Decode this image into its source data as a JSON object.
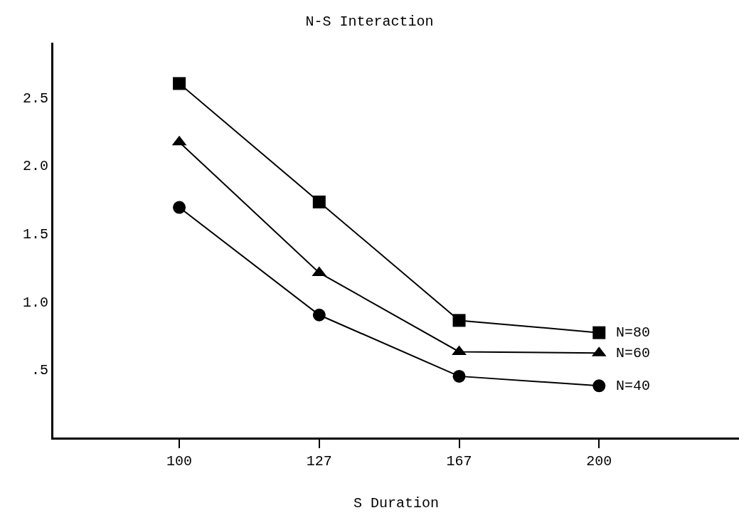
{
  "chart_data": {
    "type": "line",
    "title": "N-S Interaction",
    "xlabel": "S Duration",
    "categories": [
      "100",
      "127",
      "167",
      "200"
    ],
    "series": [
      {
        "name": "N=80",
        "color": "#000000",
        "marker": "square",
        "values": [
          2.6,
          1.73,
          0.86,
          0.77
        ]
      },
      {
        "name": "N=60",
        "color": "#000000",
        "marker": "triangle",
        "values": [
          2.17,
          1.21,
          0.63,
          0.62
        ]
      },
      {
        "name": "N=40",
        "color": "#000000",
        "marker": "circle",
        "values": [
          1.69,
          0.9,
          0.45,
          0.38
        ]
      }
    ],
    "ylim": [
      0,
      2.9
    ],
    "yticks": [
      {
        "value": 0.5,
        "label": ".5"
      },
      {
        "value": 1,
        "label": "1.0"
      },
      {
        "value": 1.5,
        "label": "1.5"
      },
      {
        "value": 2,
        "label": "2.0"
      },
      {
        "value": 2.5,
        "label": "2.5"
      }
    ],
    "grid": false,
    "legend": false,
    "line_style": "solid"
  }
}
